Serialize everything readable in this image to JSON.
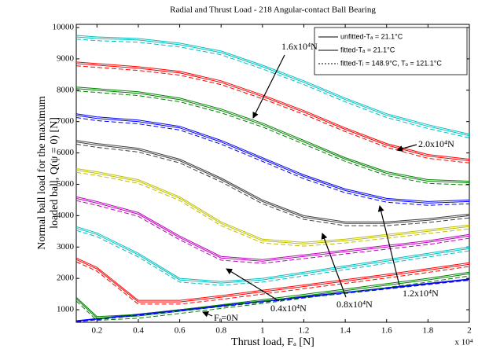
{
  "chart_data": {
    "type": "line",
    "title": "Radial and Thrust Load - 218 Angular-contact Ball Bearing",
    "xlabel": "Thrust load, Fₐ [N]",
    "ylabel": [
      "Normal ball load for the maximum",
      "loaded ball, Q(ψ = 0)  [N]"
    ],
    "x_multiplier": "x 10⁴",
    "x": [
      1000,
      2000,
      4000,
      6000,
      8000,
      10000,
      12000,
      14000,
      16000,
      18000,
      20000
    ],
    "xlim": [
      1000,
      20000
    ],
    "xticks": [
      {
        "value": 2000,
        "label": "0.2"
      },
      {
        "value": 4000,
        "label": "0.4"
      },
      {
        "value": 6000,
        "label": "0.6"
      },
      {
        "value": 8000,
        "label": "0.8"
      },
      {
        "value": 10000,
        "label": "1"
      },
      {
        "value": 12000,
        "label": "1.2"
      },
      {
        "value": 14000,
        "label": "1.4"
      },
      {
        "value": 16000,
        "label": "1.6"
      },
      {
        "value": 18000,
        "label": "1.8"
      },
      {
        "value": 20000,
        "label": "2"
      }
    ],
    "ylim": [
      600,
      10100
    ],
    "yticks": [
      1000,
      2000,
      3000,
      4000,
      5000,
      6000,
      7000,
      8000,
      9000,
      10000
    ],
    "legend": "upper right",
    "series": [
      {
        "name": "unfitted-Tₐ = 21.1°C",
        "dash": "none",
        "curves": [
          {
            "color": "#0000ff",
            "values": [
              650,
              720,
              860,
              1000,
              1140,
              1280,
              1420,
              1560,
              1700,
              1840,
              1980
            ]
          },
          {
            "color": "#008000",
            "values": [
              1400,
              780,
              850,
              1000,
              1160,
              1320,
              1490,
              1660,
              1830,
              2000,
              2200
            ]
          },
          {
            "color": "#ff0000",
            "values": [
              2650,
              2350,
              1300,
              1300,
              1450,
              1620,
              1790,
              1960,
              2130,
              2310,
              2500
            ]
          },
          {
            "color": "#00bfbf",
            "values": [
              3650,
              3450,
              2800,
              2000,
              1900,
              2000,
              2200,
              2400,
              2600,
              2800,
              3000
            ]
          },
          {
            "color": "#bf00bf",
            "values": [
              4600,
              4450,
              4100,
              3350,
              2700,
              2600,
              2750,
              2900,
              3050,
              3200,
              3400
            ]
          },
          {
            "color": "#bfbf00",
            "values": [
              5500,
              5400,
              5150,
              4600,
              3800,
              3250,
              3150,
              3250,
              3400,
              3550,
              3700
            ]
          },
          {
            "color": "#404040",
            "values": [
              6400,
              6300,
              6150,
              5800,
              5200,
              4500,
              4000,
              3800,
              3800,
              3900,
              4050
            ]
          },
          {
            "color": "#0000ff",
            "values": [
              7250,
              7150,
              7050,
              6850,
              6400,
              5850,
              5300,
              4850,
              4550,
              4450,
              4500
            ]
          },
          {
            "color": "#008000",
            "values": [
              8100,
              8050,
              7950,
              7750,
              7400,
              6950,
              6400,
              5850,
              5400,
              5150,
              5100
            ]
          },
          {
            "color": "#ff0000",
            "values": [
              8900,
              8850,
              8750,
              8600,
              8300,
              7850,
              7350,
              6800,
              6300,
              5950,
              5800
            ]
          },
          {
            "color": "#00bfbf",
            "values": [
              9750,
              9700,
              9650,
              9500,
              9250,
              8800,
              8300,
              7750,
              7250,
              6900,
              6600
            ]
          }
        ]
      },
      {
        "name": "fitted-Tₐ = 21.1°C",
        "dash": "none",
        "curves": [
          {
            "color": "#0000ff",
            "values": [
              630,
              700,
              840,
              980,
              1120,
              1260,
              1400,
              1540,
              1680,
              1820,
              1960
            ]
          },
          {
            "color": "#008000",
            "values": [
              1350,
              730,
              800,
              950,
              1110,
              1270,
              1440,
              1610,
              1780,
              1950,
              2150
            ]
          },
          {
            "color": "#ff0000",
            "values": [
              2600,
              2300,
              1250,
              1250,
              1400,
              1570,
              1740,
              1910,
              2080,
              2260,
              2450
            ]
          },
          {
            "color": "#00bfbf",
            "values": [
              3600,
              3400,
              2750,
              1950,
              1850,
              1950,
              2150,
              2350,
              2550,
              2750,
              2950
            ]
          },
          {
            "color": "#bf00bf",
            "values": [
              4550,
              4400,
              4050,
              3300,
              2650,
              2550,
              2700,
              2850,
              3000,
              3150,
              3350
            ]
          },
          {
            "color": "#bfbf00",
            "values": [
              5450,
              5350,
              5100,
              4550,
              3750,
              3200,
              3100,
              3200,
              3350,
              3500,
              3650
            ]
          },
          {
            "color": "#404040",
            "values": [
              6350,
              6250,
              6100,
              5750,
              5150,
              4450,
              3950,
              3750,
              3750,
              3850,
              4000
            ]
          },
          {
            "color": "#0000ff",
            "values": [
              7200,
              7100,
              7000,
              6800,
              6350,
              5800,
              5250,
              4800,
              4500,
              4400,
              4450
            ]
          },
          {
            "color": "#008000",
            "values": [
              8050,
              8000,
              7900,
              7700,
              7350,
              6900,
              6350,
              5800,
              5350,
              5100,
              5050
            ]
          },
          {
            "color": "#ff0000",
            "values": [
              8850,
              8800,
              8700,
              8550,
              8250,
              7800,
              7300,
              6750,
              6250,
              5900,
              5750
            ]
          },
          {
            "color": "#00bfbf",
            "values": [
              9700,
              9650,
              9600,
              9450,
              9200,
              8750,
              8250,
              7700,
              7200,
              6850,
              6550
            ]
          }
        ]
      },
      {
        "name": "fitted-Tᵢ = 148.9°C, Tₒ = 121.1°C",
        "dash": "6 3",
        "curves": [
          {
            "color": "#0000ff",
            "values": [
              610,
              680,
              820,
              960,
              1100,
              1240,
              1380,
              1520,
              1660,
              1800,
              1940
            ]
          },
          {
            "color": "#008000",
            "values": [
              1280,
              660,
              730,
              880,
              1040,
              1200,
              1370,
              1540,
              1710,
              1880,
              2080
            ]
          },
          {
            "color": "#ff0000",
            "values": [
              2530,
              2230,
              1180,
              1180,
              1330,
              1500,
              1670,
              1840,
              2010,
              2190,
              2380
            ]
          },
          {
            "color": "#00bfbf",
            "values": [
              3530,
              3330,
              2680,
              1880,
              1780,
              1880,
              2080,
              2280,
              2480,
              2680,
              2880
            ]
          },
          {
            "color": "#bf00bf",
            "values": [
              4480,
              4330,
              3980,
              3230,
              2580,
              2480,
              2630,
              2780,
              2930,
              3080,
              3280
            ]
          },
          {
            "color": "#bfbf00",
            "values": [
              5380,
              5280,
              5030,
              4480,
              3680,
              3130,
              3030,
              3130,
              3280,
              3430,
              3580
            ]
          },
          {
            "color": "#404040",
            "values": [
              6280,
              6180,
              6030,
              5680,
              5080,
              4380,
              3880,
              3680,
              3680,
              3780,
              3930
            ]
          },
          {
            "color": "#0000ff",
            "values": [
              7130,
              7030,
              6930,
              6730,
              6280,
              5730,
              5180,
              4730,
              4430,
              4330,
              4380
            ]
          },
          {
            "color": "#008000",
            "values": [
              7980,
              7930,
              7830,
              7630,
              7280,
              6830,
              6280,
              5730,
              5280,
              5030,
              4980
            ]
          },
          {
            "color": "#ff0000",
            "values": [
              8780,
              8730,
              8630,
              8480,
              8180,
              7730,
              7230,
              6680,
              6180,
              5830,
              5680
            ]
          },
          {
            "color": "#00bfbf",
            "values": [
              9630,
              9580,
              9530,
              9380,
              9130,
              8680,
              8180,
              7630,
              7130,
              6780,
              6480
            ]
          }
        ]
      }
    ],
    "annotations": [
      "1.6x10⁴N",
      "2.0x10⁴N",
      "1.2x10⁴N",
      "0.8x10⁴N",
      "0.4x10⁴N",
      "Fᵣ=0N"
    ]
  }
}
